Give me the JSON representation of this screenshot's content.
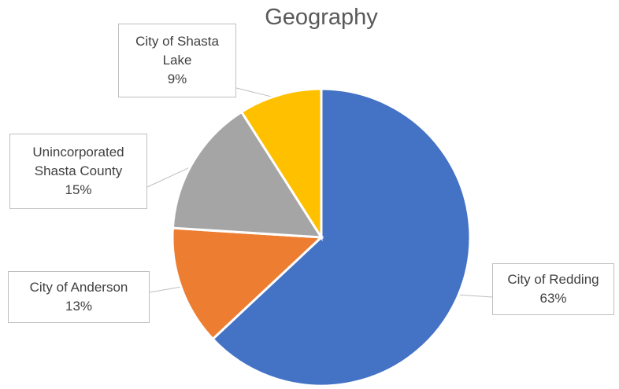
{
  "chart_data": {
    "type": "pie",
    "title": "Geography",
    "categories": [
      "City of Redding",
      "City of Anderson",
      "Unincorporated Shasta County",
      "City of Shasta Lake"
    ],
    "values": [
      63,
      13,
      15,
      9
    ],
    "value_labels": [
      "63%",
      "13%",
      "15%",
      "9%"
    ],
    "colors": [
      "#4472c4",
      "#ed7d31",
      "#a5a5a5",
      "#ffc000"
    ]
  }
}
